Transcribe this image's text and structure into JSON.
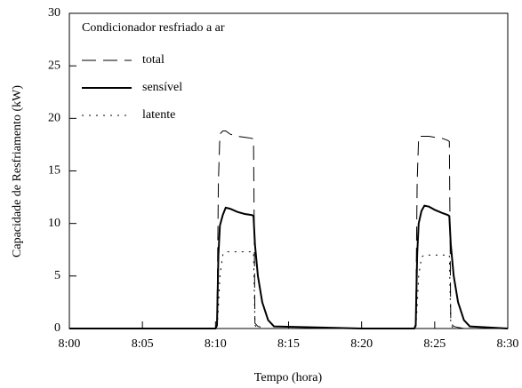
{
  "chart_data": {
    "type": "line",
    "legend_title": "Condicionador resfriado a ar",
    "x_label": "Tempo (hora)",
    "y_label": "Capacidade de Resfriamento (kW)",
    "xlim": [
      0,
      30
    ],
    "xticks": [
      {
        "value": 0,
        "label": "8:00"
      },
      {
        "value": 5,
        "label": "8:05"
      },
      {
        "value": 10,
        "label": "8:10"
      },
      {
        "value": 15,
        "label": "8:15"
      },
      {
        "value": 20,
        "label": "8:20"
      },
      {
        "value": 25,
        "label": "8:25"
      },
      {
        "value": 30,
        "label": "8:30"
      }
    ],
    "ylim": [
      0,
      30
    ],
    "yticks": [
      0,
      5,
      10,
      15,
      20,
      25,
      30
    ],
    "legend": "upper left",
    "x": [
      0,
      10,
      10.1,
      10.2,
      10.3,
      10.5,
      10.7,
      11,
      11.5,
      12,
      12.5,
      12.6,
      12.7,
      12.9,
      13.2,
      13.6,
      14,
      20,
      23.6,
      23.7,
      23.8,
      23.9,
      24.1,
      24.3,
      24.6,
      25,
      25.5,
      25.9,
      26.0,
      26.1,
      26.3,
      26.6,
      27,
      27.4,
      30
    ],
    "series": [
      {
        "name": "total",
        "color": "#000000",
        "dash": "dashed",
        "values": [
          0,
          0,
          0.5,
          14,
          18.5,
          18.8,
          18.8,
          18.5,
          18.3,
          18.2,
          18.1,
          18,
          0.5,
          0.2,
          0.1,
          0,
          0,
          0,
          0,
          0.5,
          14,
          18.3,
          18.3,
          18.3,
          18.3,
          18.2,
          18.1,
          17.9,
          17.8,
          0.5,
          0.2,
          0.1,
          0,
          0,
          0
        ]
      },
      {
        "name": "sensível",
        "color": "#000000",
        "dash": "solid",
        "values": [
          0,
          0,
          0.3,
          7,
          9.8,
          10.8,
          11.5,
          11.4,
          11.1,
          10.9,
          10.8,
          10.7,
          8,
          5,
          2.5,
          0.8,
          0.2,
          0,
          0,
          0.3,
          7,
          10,
          11.2,
          11.7,
          11.6,
          11.3,
          11,
          10.8,
          10.7,
          8,
          5,
          2.5,
          0.8,
          0.2,
          0
        ]
      },
      {
        "name": "latente",
        "color": "#000000",
        "dash": "dotted",
        "values": [
          0,
          0,
          0,
          2,
          5,
          7,
          7.3,
          7.3,
          7.3,
          7.3,
          7.3,
          7.3,
          0.3,
          0,
          0,
          0,
          0,
          0,
          0,
          0,
          2,
          5,
          6.8,
          7,
          7,
          7,
          7,
          7,
          7,
          0.3,
          0,
          0,
          0,
          0,
          0
        ]
      }
    ]
  }
}
